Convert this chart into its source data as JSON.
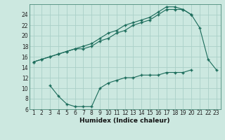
{
  "xlabel": "Humidex (Indice chaleur)",
  "x": [
    1,
    2,
    3,
    4,
    5,
    6,
    7,
    8,
    9,
    10,
    11,
    12,
    13,
    14,
    15,
    16,
    17,
    18,
    19,
    20,
    21,
    22,
    23
  ],
  "line1": [
    15,
    15.5,
    16,
    16.5,
    17,
    17.5,
    18,
    18.5,
    19.5,
    20.5,
    21,
    22,
    22.5,
    23,
    23.5,
    24.5,
    25.5,
    25.5,
    25,
    24,
    21.5,
    15.5,
    13.5
  ],
  "line2": [
    15,
    15.5,
    16,
    16.5,
    17,
    17.5,
    17.5,
    18,
    19,
    19.5,
    20.5,
    21,
    22,
    22.5,
    23,
    24,
    25,
    25,
    25,
    24,
    null,
    null,
    null
  ],
  "line3": [
    null,
    null,
    10.5,
    8.5,
    7,
    6.5,
    6.5,
    6.5,
    10,
    11,
    11.5,
    12,
    12,
    12.5,
    12.5,
    12.5,
    13,
    13,
    13,
    13.5,
    null,
    null,
    null
  ],
  "bg_color": "#cce8e0",
  "line_color": "#1a6b5a",
  "grid_color": "#aad0c8",
  "ylim": [
    6,
    26
  ],
  "yticks": [
    6,
    8,
    10,
    12,
    14,
    16,
    18,
    20,
    22,
    24
  ],
  "xlim": [
    0.5,
    23.5
  ],
  "xticks": [
    1,
    2,
    3,
    4,
    5,
    6,
    7,
    8,
    9,
    10,
    11,
    12,
    13,
    14,
    15,
    16,
    17,
    18,
    19,
    20,
    21,
    22,
    23
  ]
}
